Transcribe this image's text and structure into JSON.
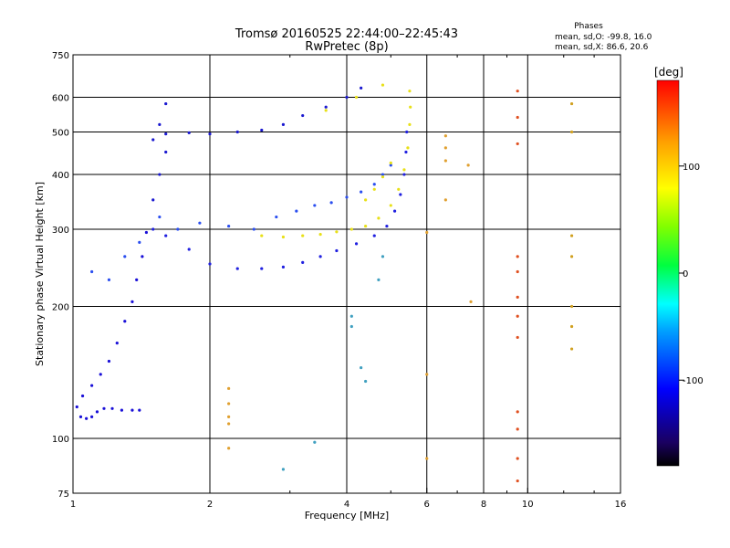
{
  "header": {
    "title_line1": "Tromsø 20160525 22:44:00–22:45:43",
    "title_line2": "RwPretec (8p)"
  },
  "stats": {
    "heading": "Phases",
    "line_o": "mean, sd,O: -99.8, 16.0",
    "line_x": "mean, sd,X:  86.6, 20.6"
  },
  "colorbar": {
    "title": "[deg]",
    "ticks": [
      {
        "label": "100",
        "value": 100
      },
      {
        "label": "0",
        "value": 0
      },
      {
        "label": "-100",
        "value": -100
      }
    ],
    "range": [
      -180,
      180
    ]
  },
  "chart_data": {
    "type": "scatter",
    "title": "Tromsø 20160525 22:44:00–22:45:43",
    "subtitle": "RwPretec (8p)",
    "xlabel": "Frequency [MHz]",
    "ylabel": "Stationary phase Virtual Height [km]",
    "x_scale": "log",
    "y_scale": "log",
    "xlim": [
      1,
      16
    ],
    "ylim": [
      75,
      750
    ],
    "x_ticks": [
      1,
      2,
      4,
      6,
      8,
      10,
      16
    ],
    "x_tick_labels": [
      "1",
      "2",
      "4",
      "6",
      "8",
      "10",
      "16"
    ],
    "x_minor_ticks": [
      3,
      5,
      7,
      9,
      12,
      14
    ],
    "y_ticks": [
      75,
      100,
      200,
      300,
      400,
      500,
      600,
      750
    ],
    "y_tick_labels": [
      "75",
      "100",
      "200",
      "300",
      "400",
      "500",
      "600",
      "750"
    ],
    "x_gridlines": [
      2,
      4,
      6,
      8,
      10
    ],
    "y_gridlines": [
      100,
      200,
      300,
      400,
      500,
      600
    ],
    "color_scale": "phase in degrees, -180 (black) through blue, cyan, green, yellow to red (180)",
    "series": [
      {
        "description": "O-mode low trace (E/F1 layer)",
        "color": "#1a10d8",
        "points": [
          [
            1.02,
            118
          ],
          [
            1.04,
            112
          ],
          [
            1.07,
            111
          ],
          [
            1.1,
            112
          ],
          [
            1.13,
            115
          ],
          [
            1.17,
            117
          ],
          [
            1.22,
            117
          ],
          [
            1.28,
            116
          ],
          [
            1.35,
            116
          ],
          [
            1.4,
            116
          ],
          [
            1.05,
            125
          ],
          [
            1.1,
            132
          ],
          [
            1.15,
            140
          ],
          [
            1.2,
            150
          ],
          [
            1.25,
            165
          ],
          [
            1.3,
            185
          ],
          [
            1.35,
            205
          ],
          [
            1.38,
            230
          ],
          [
            1.42,
            260
          ],
          [
            1.45,
            295
          ]
        ]
      },
      {
        "description": "O-mode F2 trace",
        "color": "#2020e0",
        "points": [
          [
            1.5,
            300
          ],
          [
            1.6,
            290
          ],
          [
            1.8,
            270
          ],
          [
            2.0,
            250
          ],
          [
            2.3,
            244
          ],
          [
            2.6,
            244
          ],
          [
            2.9,
            246
          ],
          [
            3.2,
            252
          ],
          [
            3.5,
            260
          ],
          [
            3.8,
            268
          ],
          [
            4.2,
            278
          ],
          [
            4.6,
            290
          ],
          [
            4.9,
            305
          ],
          [
            5.1,
            330
          ],
          [
            5.25,
            360
          ],
          [
            5.35,
            400
          ],
          [
            5.4,
            450
          ],
          [
            5.42,
            500
          ]
        ]
      },
      {
        "description": "O-mode spread F returns",
        "color": "#2a4ef0",
        "points": [
          [
            1.1,
            240
          ],
          [
            1.2,
            230
          ],
          [
            1.3,
            260
          ],
          [
            1.4,
            280
          ],
          [
            1.55,
            320
          ],
          [
            1.7,
            300
          ],
          [
            1.9,
            310
          ],
          [
            2.2,
            305
          ],
          [
            2.5,
            300
          ],
          [
            2.8,
            320
          ],
          [
            3.1,
            330
          ],
          [
            3.4,
            340
          ],
          [
            3.7,
            345
          ],
          [
            4.0,
            355
          ],
          [
            4.3,
            365
          ],
          [
            4.6,
            380
          ],
          [
            4.8,
            400
          ],
          [
            5.0,
            420
          ]
        ]
      },
      {
        "description": "O-mode multi-hop trace",
        "color": "#1a18d0",
        "points": [
          [
            1.5,
            480
          ],
          [
            1.6,
            495
          ],
          [
            1.8,
            498
          ],
          [
            2.0,
            495
          ],
          [
            2.3,
            500
          ],
          [
            2.6,
            505
          ],
          [
            2.9,
            520
          ],
          [
            3.2,
            545
          ],
          [
            3.6,
            570
          ],
          [
            4.0,
            600
          ],
          [
            4.3,
            630
          ],
          [
            1.5,
            350
          ],
          [
            1.55,
            400
          ],
          [
            1.6,
            450
          ],
          [
            1.55,
            520
          ],
          [
            1.6,
            580
          ]
        ]
      },
      {
        "description": "X-mode F2 trace",
        "color": "#e8e018",
        "points": [
          [
            2.6,
            290
          ],
          [
            2.9,
            288
          ],
          [
            3.2,
            290
          ],
          [
            3.5,
            292
          ],
          [
            3.8,
            296
          ],
          [
            4.1,
            300
          ],
          [
            4.4,
            305
          ],
          [
            4.7,
            318
          ],
          [
            5.0,
            340
          ],
          [
            5.2,
            370
          ],
          [
            5.35,
            410
          ],
          [
            5.45,
            460
          ],
          [
            5.5,
            520
          ],
          [
            5.52,
            570
          ],
          [
            5.5,
            620
          ],
          [
            4.4,
            350
          ],
          [
            4.6,
            370
          ],
          [
            4.8,
            395
          ],
          [
            5.0,
            425
          ],
          [
            3.6,
            560
          ],
          [
            4.2,
            600
          ],
          [
            4.8,
            640
          ]
        ]
      },
      {
        "description": "Scattered points near 9.5 MHz",
        "color": "#e05020",
        "points": [
          [
            9.5,
            620
          ],
          [
            9.5,
            540
          ],
          [
            9.5,
            470
          ],
          [
            9.5,
            260
          ],
          [
            9.5,
            240
          ],
          [
            9.5,
            210
          ],
          [
            9.5,
            190
          ],
          [
            9.5,
            170
          ],
          [
            9.5,
            115
          ],
          [
            9.5,
            105
          ],
          [
            9.5,
            90
          ],
          [
            9.5,
            80
          ]
        ]
      },
      {
        "description": "Scattered points near 12.5 MHz",
        "color": "#d0a020",
        "points": [
          [
            12.5,
            580
          ],
          [
            12.5,
            500
          ],
          [
            12.5,
            290
          ],
          [
            12.5,
            260
          ],
          [
            12.5,
            200
          ],
          [
            12.5,
            180
          ],
          [
            12.5,
            160
          ]
        ]
      },
      {
        "description": "Scattered points around 6-8 MHz",
        "color": "#e0a030",
        "points": [
          [
            6.6,
            490
          ],
          [
            6.6,
            460
          ],
          [
            6.6,
            430
          ],
          [
            7.4,
            420
          ],
          [
            6.6,
            350
          ],
          [
            7.5,
            205
          ],
          [
            6.0,
            295
          ],
          [
            6.0,
            140
          ],
          [
            6.0,
            90
          ]
        ]
      },
      {
        "description": "Scattered points near 2.2 MHz",
        "color": "#e0a030",
        "points": [
          [
            2.2,
            130
          ],
          [
            2.2,
            120
          ],
          [
            2.2,
            112
          ],
          [
            2.2,
            108
          ],
          [
            2.2,
            95
          ]
        ]
      },
      {
        "description": "Scattered points near 4-5 MHz",
        "color": "#40a0c0",
        "points": [
          [
            4.1,
            190
          ],
          [
            4.1,
            180
          ],
          [
            4.3,
            145
          ],
          [
            4.4,
            135
          ],
          [
            4.7,
            230
          ],
          [
            4.8,
            260
          ],
          [
            3.4,
            98
          ],
          [
            2.9,
            85
          ]
        ]
      }
    ]
  }
}
